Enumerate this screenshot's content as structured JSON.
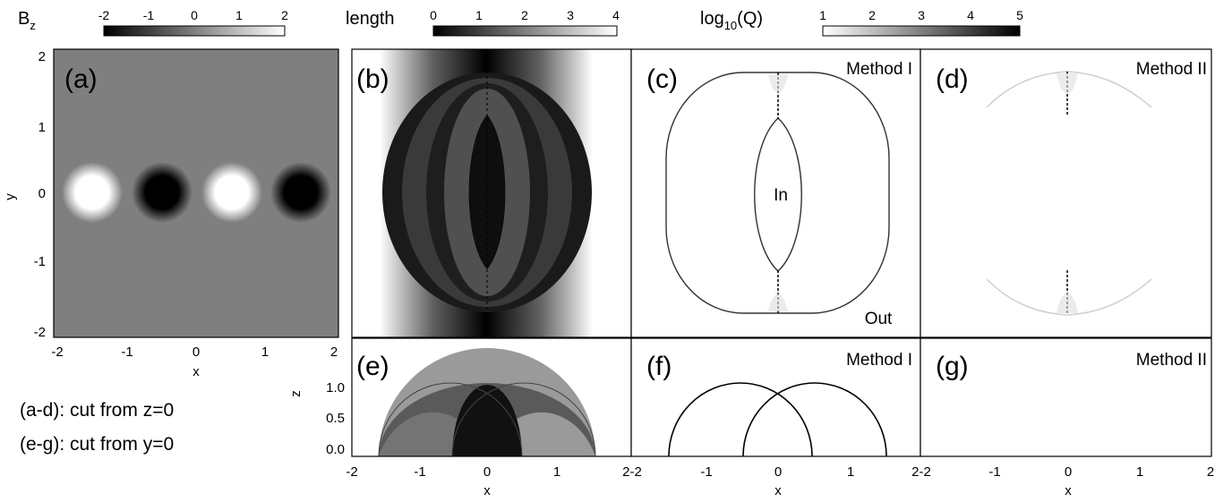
{
  "colorbars": [
    {
      "label_main": "B",
      "label_sub": "z",
      "ticks": [
        "-2",
        "-1",
        "0",
        "1",
        "2"
      ]
    },
    {
      "label": "length",
      "ticks": [
        "0",
        "1",
        "2",
        "3",
        "4"
      ]
    },
    {
      "label_main": "log",
      "label_sub": "10",
      "label_tail": "(Q)",
      "ticks": [
        "1",
        "2",
        "3",
        "4",
        "5"
      ]
    }
  ],
  "panels": {
    "a": "(a)",
    "b": "(b)",
    "c": "(c)",
    "d": "(d)",
    "e": "(e)",
    "f": "(f)",
    "g": "(g)"
  },
  "method_labels": {
    "c": "Method I",
    "d": "Method II",
    "f": "Method I",
    "g": "Method II"
  },
  "region_labels": {
    "in": "In",
    "out": "Out"
  },
  "axes": {
    "xlabel": "x",
    "ylabel": "y",
    "zlabel": "z",
    "xticks_top": [
      "-2",
      "-1",
      "0",
      "1",
      "2"
    ],
    "yticks": [
      "2",
      "1",
      "0",
      "-1",
      "-2"
    ],
    "xticks_bottom": [
      "-2",
      "-1",
      "0",
      "1",
      "2-2",
      "-1",
      "0",
      "1",
      "2-2",
      "-1",
      "0",
      "1",
      "2"
    ],
    "zticks": [
      "1.0",
      "0.5",
      "0.0"
    ]
  },
  "notes": [
    "(a-d): cut from z=0",
    "(e-g): cut from y=0"
  ]
}
